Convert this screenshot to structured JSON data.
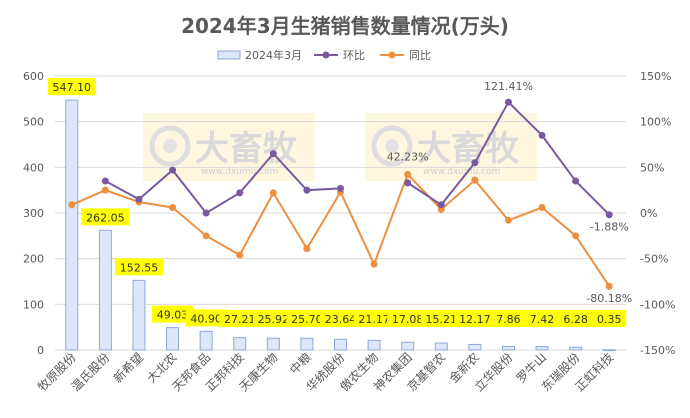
{
  "chart_data": {
    "type": "bar",
    "title": "2024年3月生猪销售数量情况(万头)",
    "legend": {
      "placement": "top",
      "items": [
        {
          "label": "2024年3月",
          "kind": "bar"
        },
        {
          "label": "环比",
          "kind": "line"
        },
        {
          "label": "同比",
          "kind": "line"
        }
      ]
    },
    "categories": [
      "牧原股份",
      "温氏股份",
      "新希望",
      "大北农",
      "天邦食品",
      "正邦科技",
      "天康生物",
      "中粮",
      "华统股份",
      "傲农生物",
      "神农集团",
      "京基智农",
      "金新农",
      "立华股份",
      "罗牛山",
      "东瑞股份",
      "正虹科技"
    ],
    "series": [
      {
        "name": "2024年3月",
        "axis": "left",
        "values": [
          547.1,
          262.05,
          152.55,
          49.03,
          40.9,
          27.21,
          25.92,
          25.7,
          23.64,
          21.17,
          17.08,
          15.21,
          12.17,
          7.86,
          7.42,
          6.28,
          0.35
        ],
        "value_labels": [
          "547.10",
          "262.05",
          "152.55",
          "49.03",
          "40.90",
          "27.21",
          "25.92",
          "25.70",
          "23.64",
          "21.17",
          "17.08",
          "15.21",
          "12.17",
          "7.86",
          "7.42",
          "6.28",
          "0.35"
        ]
      },
      {
        "name": "环比",
        "axis": "right",
        "unit": "%",
        "values": [
          null,
          35,
          15,
          47,
          0,
          22,
          65,
          25,
          27,
          null,
          33,
          9,
          55,
          121.41,
          85,
          35,
          -1.88
        ]
      },
      {
        "name": "同比",
        "axis": "right",
        "unit": "%",
        "values": [
          9,
          25,
          12,
          6,
          -25,
          -46,
          22,
          -39,
          23,
          -56,
          42.23,
          4,
          36,
          -8,
          6,
          -25,
          -80.18
        ]
      }
    ],
    "annotations": [
      {
        "text": "121.41%",
        "series": "环比",
        "index": 13
      },
      {
        "text": "-1.88%",
        "series": "环比",
        "index": 16
      },
      {
        "text": "42.23%",
        "series": "同比",
        "index": 10
      },
      {
        "text": "-80.18%",
        "series": "同比",
        "index": 16
      }
    ],
    "y_left": {
      "ticks": [
        "0",
        "100",
        "200",
        "300",
        "400",
        "500",
        "600"
      ],
      "ylim": [
        0,
        600
      ]
    },
    "y_right": {
      "ticks": [
        "-150%",
        "-100%",
        "-50%",
        "0%",
        "50%",
        "100%",
        "150%"
      ],
      "ylim": [
        -150,
        150
      ]
    },
    "grid": true,
    "colors": {
      "bar_fill": "#dce7fa",
      "bar_stroke": "#8fa9d6",
      "mom": "#7a5a9e",
      "yoy": "#ee8f3f",
      "label_bg": "#ffff00",
      "grid": "#d9d9d9",
      "text": "#595959"
    },
    "watermark": {
      "brand": "大畜牧",
      "url": "www.dxumu.com"
    }
  }
}
